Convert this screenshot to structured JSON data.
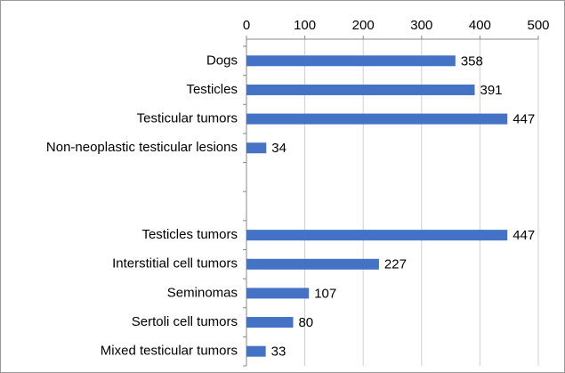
{
  "chart_data": {
    "type": "barh",
    "categories": [
      "Dogs",
      "Testicles",
      "Testicular tumors",
      "Non-neoplastic testicular lesions",
      null,
      null,
      "Testicles tumors",
      "Interstitial cell tumors",
      "Seminomas",
      "Sertoli cell tumors",
      "Mixed testicular tumors"
    ],
    "values": [
      358,
      391,
      447,
      34,
      null,
      null,
      447,
      227,
      107,
      80,
      33
    ],
    "color": "#4472c4",
    "xlim": [
      0,
      500
    ],
    "xticks": [
      0,
      100,
      200,
      300,
      400,
      500
    ],
    "grid": true
  }
}
